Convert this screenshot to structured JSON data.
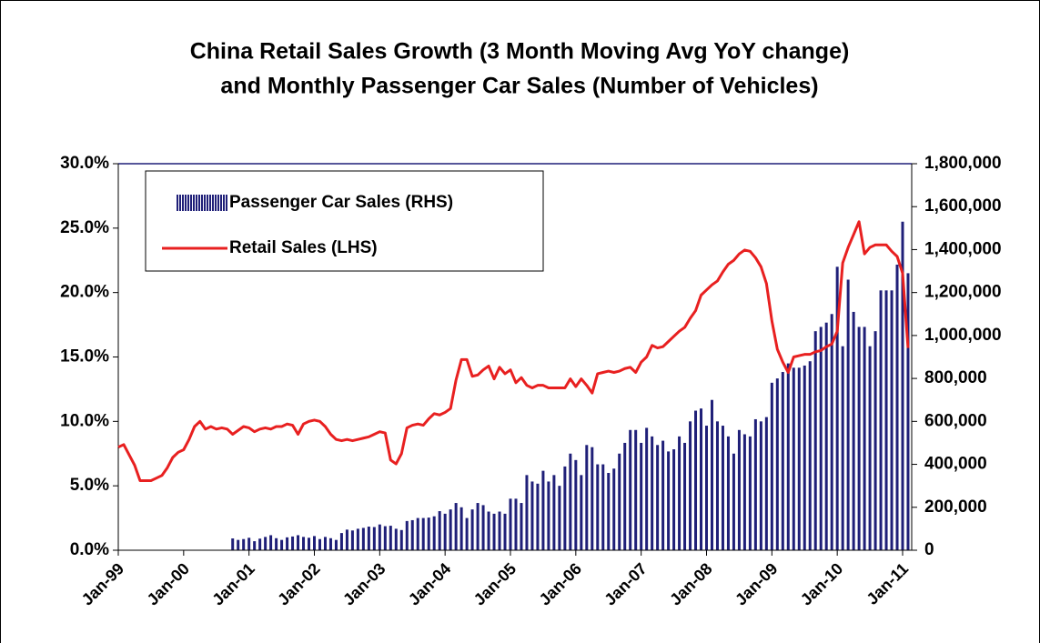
{
  "chart_data": {
    "type": "bar_line",
    "title": [
      "China Retail Sales Growth (3 Month Moving Avg YoY change)",
      "and Monthly Passenger Car Sales (Number of Vehicles)"
    ],
    "categories": [
      "Jan-99",
      null,
      null,
      null,
      null,
      null,
      null,
      null,
      null,
      null,
      null,
      null,
      "Jan-00",
      null,
      null,
      null,
      null,
      null,
      null,
      null,
      null,
      null,
      null,
      null,
      "Jan-01",
      null,
      null,
      null,
      null,
      null,
      null,
      null,
      null,
      null,
      null,
      null,
      "Jan-02",
      null,
      null,
      null,
      null,
      null,
      null,
      null,
      null,
      null,
      null,
      null,
      "Jan-03",
      null,
      null,
      null,
      null,
      null,
      null,
      null,
      null,
      null,
      null,
      null,
      "Jan-04",
      null,
      null,
      null,
      null,
      null,
      null,
      null,
      null,
      null,
      null,
      null,
      "Jan-05",
      null,
      null,
      null,
      null,
      null,
      null,
      null,
      null,
      null,
      null,
      null,
      "Jan-06",
      null,
      null,
      null,
      null,
      null,
      null,
      null,
      null,
      null,
      null,
      null,
      "Jan-07",
      null,
      null,
      null,
      null,
      null,
      null,
      null,
      null,
      null,
      null,
      null,
      "Jan-08",
      null,
      null,
      null,
      null,
      null,
      null,
      null,
      null,
      null,
      null,
      null,
      "Jan-09",
      null,
      null,
      null,
      null,
      null,
      null,
      null,
      null,
      null,
      null,
      null,
      "Jan-10",
      null,
      null,
      null,
      null,
      null,
      null,
      null,
      null,
      null,
      null,
      null,
      "Jan-11",
      null
    ],
    "series": [
      {
        "name": "Passenger Car Sales (RHS)",
        "type": "bar",
        "axis": "y2",
        "color": "#1f1f78",
        "values": [
          null,
          null,
          null,
          null,
          null,
          null,
          null,
          null,
          null,
          null,
          null,
          null,
          null,
          null,
          null,
          null,
          null,
          null,
          null,
          null,
          null,
          55000,
          48000,
          52000,
          58000,
          42000,
          54000,
          62000,
          70000,
          56000,
          48000,
          60000,
          64000,
          70000,
          62000,
          58000,
          66000,
          52000,
          62000,
          56000,
          48000,
          80000,
          96000,
          92000,
          100000,
          104000,
          110000,
          108000,
          120000,
          112000,
          114000,
          100000,
          94000,
          136000,
          140000,
          150000,
          150000,
          152000,
          158000,
          182000,
          170000,
          190000,
          220000,
          200000,
          150000,
          190000,
          220000,
          210000,
          180000,
          170000,
          180000,
          170000,
          240000,
          240000,
          220000,
          350000,
          320000,
          310000,
          370000,
          320000,
          350000,
          300000,
          390000,
          450000,
          420000,
          350000,
          490000,
          480000,
          400000,
          400000,
          360000,
          380000,
          450000,
          500000,
          560000,
          560000,
          500000,
          570000,
          530000,
          490000,
          510000,
          460000,
          470000,
          530000,
          500000,
          600000,
          650000,
          660000,
          580000,
          700000,
          600000,
          580000,
          530000,
          450000,
          560000,
          540000,
          530000,
          610000,
          600000,
          620000,
          780000,
          800000,
          830000,
          870000,
          850000,
          850000,
          860000,
          880000,
          1020000,
          1040000,
          1060000,
          1100000,
          1320000,
          950000,
          1260000,
          1110000,
          1040000,
          1040000,
          950000,
          1020000,
          1210000,
          1210000,
          1210000,
          1330000,
          1530000,
          1290000
        ]
      },
      {
        "name": "Retail Sales (LHS)",
        "type": "line",
        "axis": "y",
        "color": "#e82020",
        "values": [
          8.0,
          8.2,
          7.4,
          6.6,
          5.4,
          5.4,
          5.4,
          5.6,
          5.8,
          6.4,
          7.2,
          7.6,
          7.8,
          8.6,
          9.6,
          10.0,
          9.4,
          9.6,
          9.4,
          9.5,
          9.4,
          9.0,
          9.3,
          9.6,
          9.5,
          9.2,
          9.4,
          9.5,
          9.4,
          9.6,
          9.6,
          9.8,
          9.7,
          9.0,
          9.8,
          10.0,
          10.1,
          10.0,
          9.6,
          9.0,
          8.6,
          8.5,
          8.6,
          8.5,
          8.6,
          8.7,
          8.8,
          9.0,
          9.2,
          9.1,
          7.0,
          6.7,
          7.5,
          9.5,
          9.7,
          9.8,
          9.7,
          10.2,
          10.6,
          10.5,
          10.7,
          11.0,
          13.2,
          14.8,
          14.8,
          13.5,
          13.6,
          14.0,
          14.3,
          13.3,
          14.2,
          13.7,
          14.0,
          13.0,
          13.4,
          12.8,
          12.6,
          12.8,
          12.8,
          12.6,
          12.6,
          12.6,
          12.6,
          13.3,
          12.7,
          13.3,
          12.8,
          12.2,
          13.7,
          13.8,
          13.9,
          13.8,
          13.9,
          14.1,
          14.2,
          13.8,
          14.6,
          15.0,
          15.9,
          15.7,
          15.8,
          16.2,
          16.6,
          17.0,
          17.3,
          18.0,
          18.6,
          19.8,
          20.2,
          20.6,
          20.9,
          21.6,
          22.2,
          22.5,
          23.0,
          23.3,
          23.2,
          22.7,
          22.0,
          20.7,
          17.8,
          15.6,
          14.6,
          13.8,
          15.0,
          15.1,
          15.2,
          15.2,
          15.4,
          15.5,
          15.8,
          16.0,
          17.0,
          22.3,
          23.5,
          24.5,
          25.5,
          23.0,
          23.5,
          23.7,
          23.7,
          23.7,
          23.2,
          22.8,
          21.5,
          15.7
        ]
      }
    ],
    "ylim": [
      0,
      30
    ],
    "yticks": [
      {
        "value": 0,
        "label": "0.0%"
      },
      {
        "value": 5,
        "label": "5.0%"
      },
      {
        "value": 10,
        "label": "10.0%"
      },
      {
        "value": 15,
        "label": "15.0%"
      },
      {
        "value": 20,
        "label": "20.0%"
      },
      {
        "value": 25,
        "label": "25.0%"
      },
      {
        "value": 30,
        "label": "30.0%"
      }
    ],
    "y2lim": [
      0,
      1800000
    ],
    "y2ticks": [
      0,
      {
        "value": 200000,
        "label": "200,000"
      },
      {
        "value": 400000,
        "label": "400,000"
      },
      {
        "value": 600000,
        "label": "600,000"
      },
      {
        "value": 800000,
        "label": "800,000"
      },
      {
        "value": 1000000,
        "label": "1,000,000"
      },
      {
        "value": 1200000,
        "label": "1,200,000"
      },
      {
        "value": 1400000,
        "label": "1,400,000"
      },
      {
        "value": 1600000,
        "label": "1,600,000"
      },
      {
        "value": 1800000,
        "label": "1,800,000"
      }
    ],
    "legend": "upper left"
  }
}
